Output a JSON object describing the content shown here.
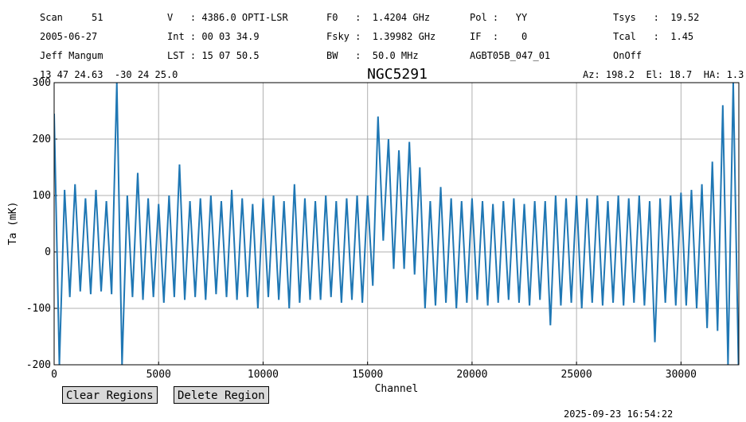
{
  "header": {
    "rows": [
      [
        "Scan     51",
        "V   : 4386.0 OPTI-LSR",
        "F0   :  1.4204 GHz",
        "Pol :   YY",
        "Tsys   :  19.52"
      ],
      [
        "2005-06-27",
        "Int : 00 03 34.9",
        "Fsky :  1.39982 GHz",
        "IF  :    0",
        "Tcal   :  1.45"
      ],
      [
        "Jeff Mangum",
        "LST : 15 07 50.5",
        "BW   :  50.0 MHz",
        "AGBT05B_047_01",
        "OnOff"
      ]
    ],
    "coords": "13 47 24.63  -30 24 25.0",
    "azel": "Az: 198.2  El: 18.7  HA: 1.3"
  },
  "chart_data": {
    "type": "line",
    "title": "NGC5291",
    "x_label": "Channel",
    "y_label": "Ta (mK)",
    "xlim": [
      0,
      32768
    ],
    "ylim": [
      -200,
      300
    ],
    "xticks": [
      0,
      5000,
      10000,
      15000,
      20000,
      25000,
      30000
    ],
    "yticks": [
      -200,
      -100,
      0,
      100,
      200,
      300
    ],
    "grid": true,
    "x": [
      0,
      250,
      500,
      750,
      1000,
      1250,
      1500,
      1750,
      2000,
      2250,
      2500,
      2750,
      3000,
      3250,
      3500,
      3750,
      4000,
      4250,
      4500,
      4750,
      5000,
      5250,
      5500,
      5750,
      6000,
      6250,
      6500,
      6750,
      7000,
      7250,
      7500,
      7750,
      8000,
      8250,
      8500,
      8750,
      9000,
      9250,
      9500,
      9750,
      10000,
      10250,
      10500,
      10750,
      11000,
      11250,
      11500,
      11750,
      12000,
      12250,
      12500,
      12750,
      13000,
      13250,
      13500,
      13750,
      14000,
      14250,
      14500,
      14750,
      15000,
      15250,
      15500,
      15750,
      16000,
      16250,
      16500,
      16750,
      17000,
      17250,
      17500,
      17750,
      18000,
      18250,
      18500,
      18750,
      19000,
      19250,
      19500,
      19750,
      20000,
      20250,
      20500,
      20750,
      21000,
      21250,
      21500,
      21750,
      22000,
      22250,
      22500,
      22750,
      23000,
      23250,
      23500,
      23750,
      24000,
      24250,
      24500,
      24750,
      25000,
      25250,
      25500,
      25750,
      26000,
      26250,
      26500,
      26750,
      27000,
      27250,
      27500,
      27750,
      28000,
      28250,
      28500,
      28750,
      29000,
      29250,
      29500,
      29750,
      30000,
      30250,
      30500,
      30750,
      31000,
      31250,
      31500,
      31750,
      32000,
      32250,
      32500,
      32750
    ],
    "series": [
      {
        "name": "NGC5291",
        "color": "#1f77b4",
        "values": [
          245,
          -200,
          110,
          -80,
          120,
          -70,
          95,
          -75,
          110,
          -70,
          90,
          -75,
          300,
          -200,
          100,
          -80,
          140,
          -85,
          95,
          -80,
          85,
          -90,
          100,
          -80,
          155,
          -85,
          90,
          -80,
          95,
          -85,
          100,
          -75,
          90,
          -80,
          110,
          -85,
          95,
          -80,
          85,
          -100,
          95,
          -80,
          100,
          -85,
          90,
          -100,
          120,
          -90,
          95,
          -85,
          90,
          -85,
          100,
          -80,
          90,
          -90,
          95,
          -85,
          100,
          -90,
          100,
          -60,
          240,
          20,
          200,
          -30,
          180,
          -30,
          195,
          -40,
          150,
          -100,
          90,
          -95,
          115,
          -90,
          95,
          -100,
          90,
          -90,
          95,
          -85,
          90,
          -95,
          85,
          -90,
          90,
          -85,
          95,
          -90,
          85,
          -95,
          90,
          -85,
          90,
          -130,
          100,
          -95,
          95,
          -90,
          100,
          -100,
          95,
          -90,
          100,
          -95,
          90,
          -90,
          100,
          -95,
          95,
          -90,
          100,
          -95,
          90,
          -160,
          95,
          -90,
          100,
          -95,
          105,
          -95,
          110,
          -100,
          120,
          -135,
          160,
          -140,
          260,
          -200,
          300,
          -200
        ]
      }
    ]
  },
  "buttons": [
    "Clear Regions",
    "Delete Region"
  ],
  "timestamp": "2025-09-23 16:54:22"
}
